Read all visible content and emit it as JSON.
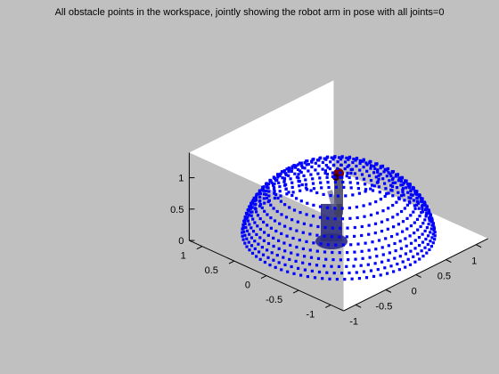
{
  "figure": {
    "title": "All obstacle points in the workspace, jointly showing the robot arm in pose with all joints=0"
  },
  "chart_data": {
    "type": "scatter",
    "projection": "3d",
    "title": "All obstacle points in the workspace, jointly showing the robot arm in pose with all joints=0",
    "xlabel": "",
    "ylabel": "",
    "zlabel": "",
    "xlim": [
      -1.2,
      1.2
    ],
    "ylim": [
      -1.2,
      1.2
    ],
    "zlim": [
      0,
      1.4
    ],
    "grid": false,
    "x_ticks": [
      -1,
      -0.5,
      0,
      0.5,
      1
    ],
    "y_ticks": [
      -1,
      -0.5,
      0,
      0.5,
      1
    ],
    "z_ticks": [
      0,
      0.5,
      1
    ],
    "x_tick_labels": [
      "-1",
      "-0.5",
      "0",
      "0.5",
      "1"
    ],
    "y_tick_labels": [
      "-1",
      "-0.5",
      "0",
      "0.5",
      "1"
    ],
    "z_tick_labels": [
      "0",
      "0.5",
      "1"
    ],
    "series": [
      {
        "kind": "hemisphere-shell-points",
        "color": "#0000ff",
        "center": [
          0,
          0,
          0
        ],
        "radius": 1.1,
        "z_range": [
          0.1,
          1.1
        ]
      },
      {
        "kind": "robot-arm",
        "color": "#404060",
        "base": [
          0,
          0,
          0
        ],
        "top": [
          0,
          0,
          1.05
        ],
        "end_effector_color": "#7a0000"
      }
    ]
  }
}
